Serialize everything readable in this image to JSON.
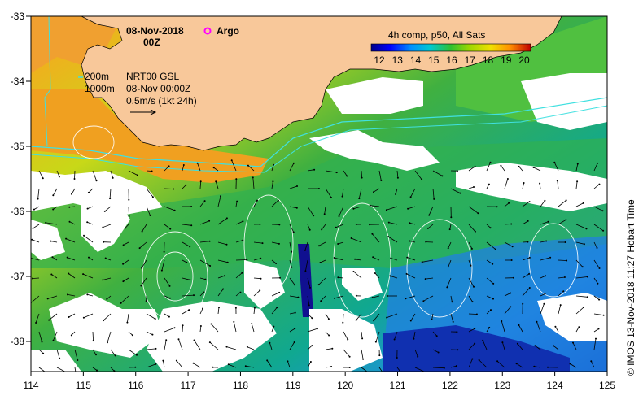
{
  "map": {
    "date": "08-Nov-2018",
    "hour": "00Z",
    "argo_label": "Argo",
    "argo_color": "#ff00ff",
    "composite_label": "4h comp, p50, All Sats",
    "colorbar_ticks": [
      "12",
      "13",
      "14",
      "15",
      "16",
      "17",
      "18",
      "19",
      "20"
    ],
    "colorbar_colors": [
      "#00008b",
      "#0000ff",
      "#0080ff",
      "#00c0ff",
      "#00c080",
      "#30c030",
      "#a0d000",
      "#e0e000",
      "#ffc000",
      "#ff8000",
      "#ff4000",
      "#c00000"
    ],
    "isobath_labels": [
      "200m",
      "1000m"
    ],
    "current_lines": [
      "NRT00 GSL",
      "08-Nov 00:00Z",
      "0.5m/s (1kt 24h)"
    ],
    "x_ticks": [
      "114",
      "115",
      "116",
      "117",
      "118",
      "119",
      "120",
      "121",
      "122",
      "123",
      "124",
      "125"
    ],
    "y_ticks": [
      "-33",
      "-34",
      "-35",
      "-36",
      "-37",
      "-38"
    ],
    "credit": "© IMOS 13-Nov-2018 11:27 Hobart Time",
    "land_color": "#f8c89a",
    "cloud_color": "#ffffff"
  }
}
